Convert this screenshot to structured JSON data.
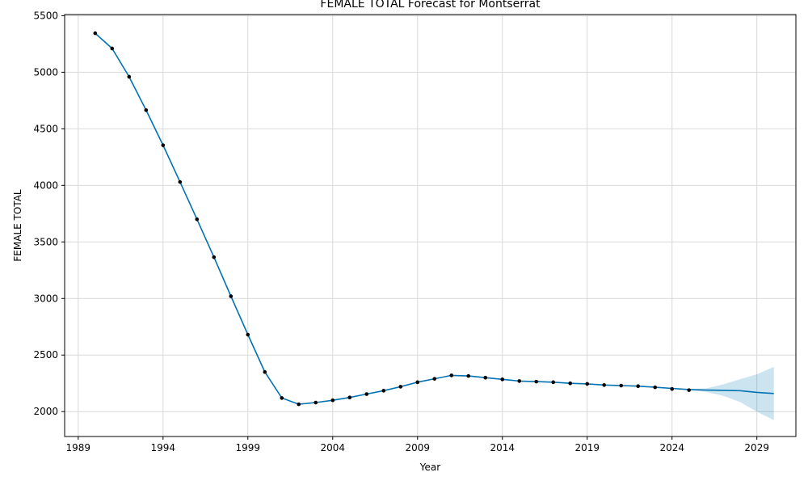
{
  "chart_data": {
    "type": "line",
    "title": "FEMALE TOTAL Forecast for Montserrat",
    "xlabel": "Year",
    "ylabel": "FEMALE TOTAL",
    "xlim": [
      1988.2,
      2031.3
    ],
    "ylim": [
      1780,
      5510
    ],
    "x_ticks": [
      1989,
      1994,
      1999,
      2004,
      2009,
      2014,
      2019,
      2024,
      2029
    ],
    "x_tick_labels": [
      "1989",
      "1994",
      "1999",
      "2004",
      "2009",
      "2014",
      "2019",
      "2024",
      "2029"
    ],
    "y_ticks": [
      2000,
      2500,
      3000,
      3500,
      4000,
      4500,
      5000,
      5500
    ],
    "y_tick_labels": [
      "2000",
      "2500",
      "3000",
      "3500",
      "4000",
      "4500",
      "5000",
      "5500"
    ],
    "grid": true,
    "colors": {
      "line": "#0072b2",
      "band": "#0072b2",
      "points": "#000000",
      "grid": "#d9d9d9"
    },
    "observed": {
      "x": [
        1990,
        1991,
        1992,
        1993,
        1994,
        1995,
        1996,
        1997,
        1998,
        1999,
        2000,
        2001,
        2002,
        2003,
        2004,
        2005,
        2006,
        2007,
        2008,
        2009,
        2010,
        2011,
        2012,
        2013,
        2014,
        2015,
        2016,
        2017,
        2018,
        2019,
        2020,
        2021,
        2022,
        2023,
        2024,
        2025
      ],
      "y": [
        5345,
        5210,
        4960,
        4665,
        4355,
        4030,
        3700,
        3365,
        3020,
        2680,
        2350,
        2120,
        2065,
        2080,
        2100,
        2125,
        2155,
        2185,
        2220,
        2260,
        2290,
        2320,
        2315,
        2300,
        2285,
        2270,
        2265,
        2260,
        2250,
        2245,
        2235,
        2230,
        2225,
        2215,
        2200,
        2190
      ]
    },
    "forecast": {
      "x": [
        1990,
        1991,
        1992,
        1993,
        1994,
        1995,
        1996,
        1997,
        1998,
        1999,
        2000,
        2001,
        2002,
        2003,
        2004,
        2005,
        2006,
        2007,
        2008,
        2009,
        2010,
        2011,
        2012,
        2013,
        2014,
        2015,
        2016,
        2017,
        2018,
        2019,
        2020,
        2021,
        2022,
        2023,
        2024,
        2025,
        2026,
        2027,
        2028,
        2029,
        2030
      ],
      "yhat": [
        5345,
        5210,
        4960,
        4665,
        4355,
        4030,
        3700,
        3365,
        3020,
        2680,
        2350,
        2120,
        2065,
        2080,
        2100,
        2125,
        2155,
        2185,
        2220,
        2260,
        2290,
        2320,
        2315,
        2300,
        2285,
        2270,
        2265,
        2260,
        2250,
        2245,
        2235,
        2230,
        2225,
        2215,
        2205,
        2195,
        2190,
        2188,
        2185,
        2170,
        2160
      ],
      "lower": [
        5345,
        5210,
        4960,
        4665,
        4355,
        4030,
        3700,
        3365,
        3020,
        2680,
        2350,
        2120,
        2065,
        2080,
        2100,
        2125,
        2155,
        2185,
        2220,
        2260,
        2290,
        2320,
        2315,
        2300,
        2285,
        2270,
        2265,
        2260,
        2250,
        2245,
        2235,
        2230,
        2225,
        2215,
        2200,
        2190,
        2175,
        2140,
        2085,
        2000,
        1925
      ],
      "upper": [
        5345,
        5210,
        4960,
        4665,
        4355,
        4030,
        3700,
        3365,
        3020,
        2680,
        2350,
        2120,
        2065,
        2080,
        2100,
        2125,
        2155,
        2185,
        2220,
        2260,
        2290,
        2320,
        2315,
        2300,
        2285,
        2270,
        2265,
        2260,
        2250,
        2245,
        2235,
        2230,
        2225,
        2215,
        2210,
        2200,
        2205,
        2240,
        2285,
        2330,
        2395
      ]
    }
  }
}
